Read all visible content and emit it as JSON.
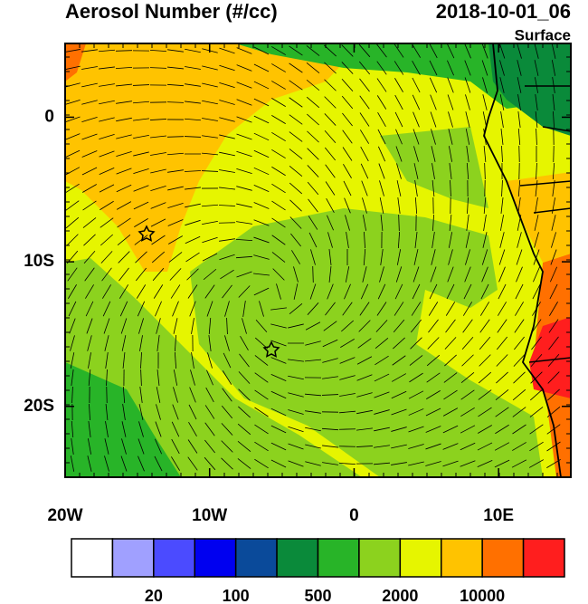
{
  "title": "Aerosol Number (#/cc)",
  "time": "2018-10-01_06",
  "level": "Surface",
  "map": {
    "xlim": [
      -20,
      15
    ],
    "ylim": [
      -24.9,
      5.1
    ],
    "xticks": [
      {
        "value": -20,
        "label": "20W"
      },
      {
        "value": -10,
        "label": "10W"
      },
      0,
      {
        "value": 10,
        "label": "10E"
      }
    ],
    "yticks": [
      0,
      {
        "value": -10,
        "label": "10S"
      },
      {
        "value": -20,
        "label": "20S"
      }
    ]
  },
  "colorbar": {
    "colors": [
      "#ffffff",
      "#a0a0ff",
      "#4b4bff",
      "#0000f0",
      "#0a4a9a",
      "#0a8a3a",
      "#28b428",
      "#8cd21e",
      "#e6f500",
      "#ffc300",
      "#ff7000",
      "#ff1e1e"
    ],
    "labels": [
      20,
      100,
      500,
      2000,
      10000
    ]
  }
}
